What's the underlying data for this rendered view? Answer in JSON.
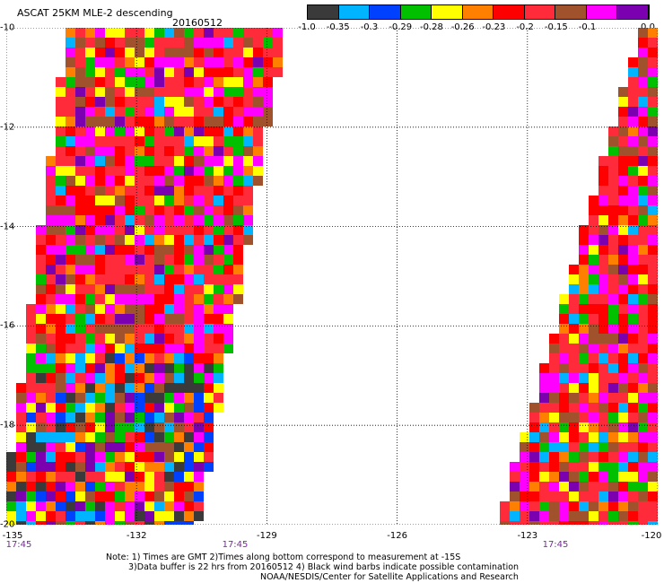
{
  "title": "ASCAT 25KM MLE-2 descending",
  "date": "20160512",
  "colorbar": {
    "labels": [
      "-1.0",
      "-0.35",
      "-0.3",
      "-0.29",
      "-0.28",
      "-0.26",
      "-0.23",
      "-0.2",
      "-0.15",
      "-0.1",
      "0.0"
    ],
    "colors": [
      "#3a3a3a",
      "#00b4ff",
      "#0040ff",
      "#00c000",
      "#ffff00",
      "#ff8000",
      "#ff0000",
      "#ff2a3a",
      "#a0522d",
      "#ff00ff",
      "#7a00b0"
    ]
  },
  "axes": {
    "lat_labels": [
      "-10",
      "-12",
      "-14",
      "-16",
      "-18",
      "-20"
    ],
    "lon_labels": [
      "-135",
      "-132",
      "-129",
      "-126",
      "-123",
      "-120"
    ],
    "time_labels": [
      "17:45",
      "17:45",
      "17:45"
    ]
  },
  "map": {
    "lon_range": [
      -135,
      -120
    ],
    "lat_range": [
      -20,
      -10
    ],
    "swaths": [
      {
        "name": "west-swath",
        "lon_west_top": -133.5,
        "lon_east_top": -128.7,
        "lon_west_bottom": -135,
        "lon_east_bottom": -130.7
      },
      {
        "name": "east-swath",
        "lon_west_top": -120.3,
        "lon_east_top": -119.8,
        "lon_west_bottom": -123.6,
        "lon_east_bottom": -119.8
      }
    ]
  },
  "notes": [
    "Note: 1) Times are GMT 2)Times along bottom correspond to measurement at -15S",
    "3)Data buffer is 22 hrs from 20160512 4) Black wind barbs indicate possible contamination",
    "NOAA/NESDIS/Center for Satellite Applications and Research"
  ]
}
